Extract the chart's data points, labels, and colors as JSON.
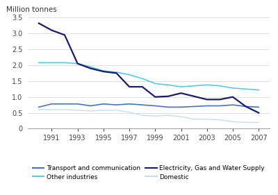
{
  "years": [
    1990,
    1991,
    1992,
    1993,
    1994,
    1995,
    1996,
    1997,
    1998,
    1999,
    2000,
    2001,
    2002,
    2003,
    2004,
    2005,
    2006,
    2007
  ],
  "transport": [
    0.68,
    0.78,
    0.78,
    0.78,
    0.72,
    0.78,
    0.75,
    0.78,
    0.75,
    0.72,
    0.68,
    0.68,
    0.7,
    0.72,
    0.72,
    0.75,
    0.7,
    0.68
  ],
  "electricity": [
    3.32,
    3.1,
    2.95,
    2.05,
    1.9,
    1.8,
    1.75,
    1.32,
    1.32,
    1.0,
    1.02,
    1.12,
    1.02,
    0.92,
    0.92,
    1.0,
    0.7,
    0.5
  ],
  "other_industries": [
    2.08,
    2.08,
    2.08,
    2.05,
    1.95,
    1.82,
    1.78,
    1.7,
    1.58,
    1.42,
    1.38,
    1.32,
    1.35,
    1.38,
    1.35,
    1.28,
    1.25,
    1.22
  ],
  "domestic": [
    0.6,
    0.6,
    0.6,
    0.58,
    0.56,
    0.58,
    0.58,
    0.52,
    0.42,
    0.4,
    0.42,
    0.38,
    0.3,
    0.3,
    0.28,
    0.22,
    0.2,
    0.2
  ],
  "transport_color": "#4472c4",
  "electricity_color": "#1a1a6e",
  "other_industries_color": "#5bc8e8",
  "domestic_color": "#c5dff0",
  "ylabel": "Million tonnes",
  "ylim": [
    0,
    3.5
  ],
  "yticks": [
    0,
    0.5,
    1.0,
    1.5,
    2.0,
    2.5,
    3.0,
    3.5
  ],
  "xticks": [
    1991,
    1993,
    1995,
    1997,
    1999,
    2001,
    2003,
    2005,
    2007
  ],
  "background_color": "#ffffff",
  "grid_color": "#d0d0d0",
  "legend_labels": [
    "Transport and communication",
    "Other industries",
    "Electricity, Gas and Water Supply",
    "Domestic"
  ]
}
